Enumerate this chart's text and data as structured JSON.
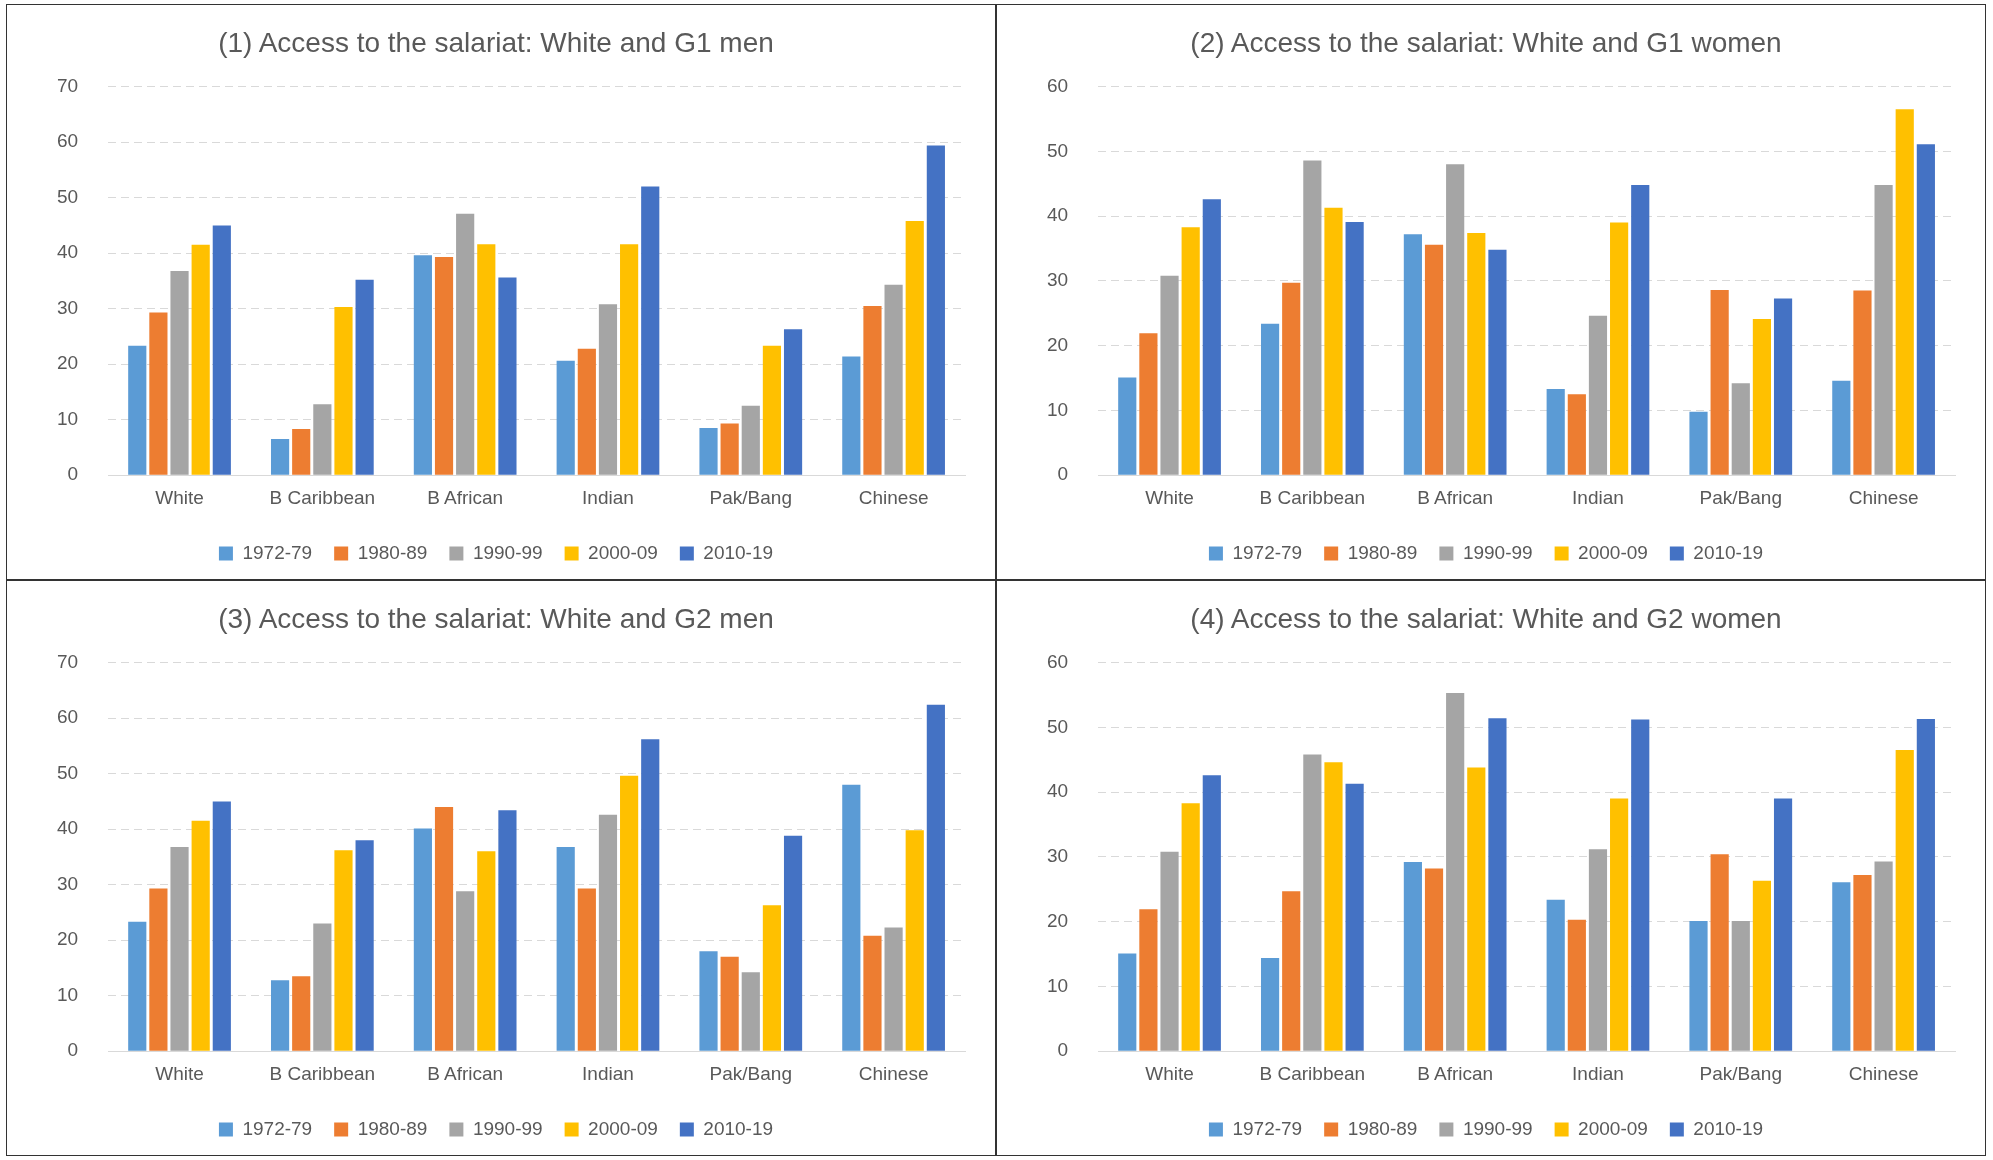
{
  "chart_data": [
    {
      "type": "bar",
      "title": "(1) Access to the salariat: White and G1 men",
      "categories": [
        "White",
        "B Caribbean",
        "B African",
        "Indian",
        "Pak/Bang",
        "Chinese"
      ],
      "ylim": [
        0,
        70
      ],
      "yticks": [
        0,
        10,
        20,
        30,
        40,
        50,
        60,
        70
      ],
      "grid": "y",
      "legend": "bottom",
      "series": [
        {
          "name": "1972-79",
          "color": "#5b9bd5",
          "values": [
            23.3,
            6.5,
            39.6,
            20.6,
            8.5,
            21.4
          ]
        },
        {
          "name": "1980-89",
          "color": "#ed7d31",
          "values": [
            29.3,
            8.3,
            39.3,
            22.8,
            9.3,
            30.5
          ]
        },
        {
          "name": "1990-99",
          "color": "#a5a5a5",
          "values": [
            36.8,
            12.8,
            47.1,
            30.8,
            12.5,
            34.3
          ]
        },
        {
          "name": "2000-09",
          "color": "#ffc000",
          "values": [
            41.5,
            30.3,
            41.6,
            41.6,
            23.3,
            45.8
          ]
        },
        {
          "name": "2010-19",
          "color": "#4472c4",
          "values": [
            45,
            35.2,
            35.6,
            52,
            26.3,
            59.4
          ]
        }
      ]
    },
    {
      "type": "bar",
      "title": "(2) Access to the salariat: White and G1 women",
      "categories": [
        "White",
        "B Caribbean",
        "B African",
        "Indian",
        "Pak/Bang",
        "Chinese"
      ],
      "ylim": [
        0,
        60
      ],
      "yticks": [
        0,
        10,
        20,
        30,
        40,
        50,
        60
      ],
      "grid": "y",
      "legend": "bottom",
      "series": [
        {
          "name": "1972-79",
          "color": "#5b9bd5",
          "values": [
            15.1,
            23.4,
            37.2,
            13.3,
            9.8,
            14.6
          ]
        },
        {
          "name": "1980-89",
          "color": "#ed7d31",
          "values": [
            21.9,
            29.7,
            35.6,
            12.5,
            28.6,
            28.5
          ]
        },
        {
          "name": "1990-99",
          "color": "#a5a5a5",
          "values": [
            30.8,
            48.6,
            48,
            24.6,
            14.2,
            44.8
          ]
        },
        {
          "name": "2000-09",
          "color": "#ffc000",
          "values": [
            38.3,
            41.3,
            37.4,
            39,
            24.1,
            56.5
          ]
        },
        {
          "name": "2010-19",
          "color": "#4472c4",
          "values": [
            42.6,
            39.1,
            34.8,
            44.8,
            27.3,
            51.1
          ]
        }
      ]
    },
    {
      "type": "bar",
      "title": "(3) Access to the salariat: White and G2 men",
      "categories": [
        "White",
        "B Caribbean",
        "B African",
        "Indian",
        "Pak/Bang",
        "Chinese"
      ],
      "ylim": [
        0,
        70
      ],
      "yticks": [
        0,
        10,
        20,
        30,
        40,
        50,
        60,
        70
      ],
      "grid": "y",
      "legend": "bottom",
      "series": [
        {
          "name": "1972-79",
          "color": "#5b9bd5",
          "values": [
            23.3,
            12.8,
            40.1,
            36.8,
            18,
            48
          ]
        },
        {
          "name": "1980-89",
          "color": "#ed7d31",
          "values": [
            29.3,
            13.5,
            44,
            29.3,
            17,
            20.8
          ]
        },
        {
          "name": "1990-99",
          "color": "#a5a5a5",
          "values": [
            36.8,
            23,
            28.8,
            42.6,
            14.2,
            22.3
          ]
        },
        {
          "name": "2000-09",
          "color": "#ffc000",
          "values": [
            41.5,
            36.2,
            36,
            49.6,
            26.3,
            39.8
          ]
        },
        {
          "name": "2010-19",
          "color": "#4472c4",
          "values": [
            45,
            38,
            43.4,
            56.2,
            38.8,
            62.4
          ]
        }
      ]
    },
    {
      "type": "bar",
      "title": "(4) Access to the salariat: White and G2 women",
      "categories": [
        "White",
        "B Caribbean",
        "B African",
        "Indian",
        "Pak/Bang",
        "Chinese"
      ],
      "ylim": [
        0,
        60
      ],
      "yticks": [
        0,
        10,
        20,
        30,
        40,
        50,
        60
      ],
      "grid": "y",
      "legend": "bottom",
      "series": [
        {
          "name": "1972-79",
          "color": "#5b9bd5",
          "values": [
            15.1,
            14.4,
            29.2,
            23.4,
            20.1,
            26.1
          ]
        },
        {
          "name": "1980-89",
          "color": "#ed7d31",
          "values": [
            21.9,
            24.7,
            28.2,
            20.3,
            30.4,
            27.2
          ]
        },
        {
          "name": "1990-99",
          "color": "#a5a5a5",
          "values": [
            30.8,
            45.8,
            55.3,
            31.2,
            20.1,
            29.3
          ]
        },
        {
          "name": "2000-09",
          "color": "#ffc000",
          "values": [
            38.3,
            44.6,
            43.8,
            39,
            26.3,
            46.5
          ]
        },
        {
          "name": "2010-19",
          "color": "#4472c4",
          "values": [
            42.6,
            41.3,
            51.4,
            51.2,
            39,
            51.3
          ]
        }
      ]
    }
  ]
}
